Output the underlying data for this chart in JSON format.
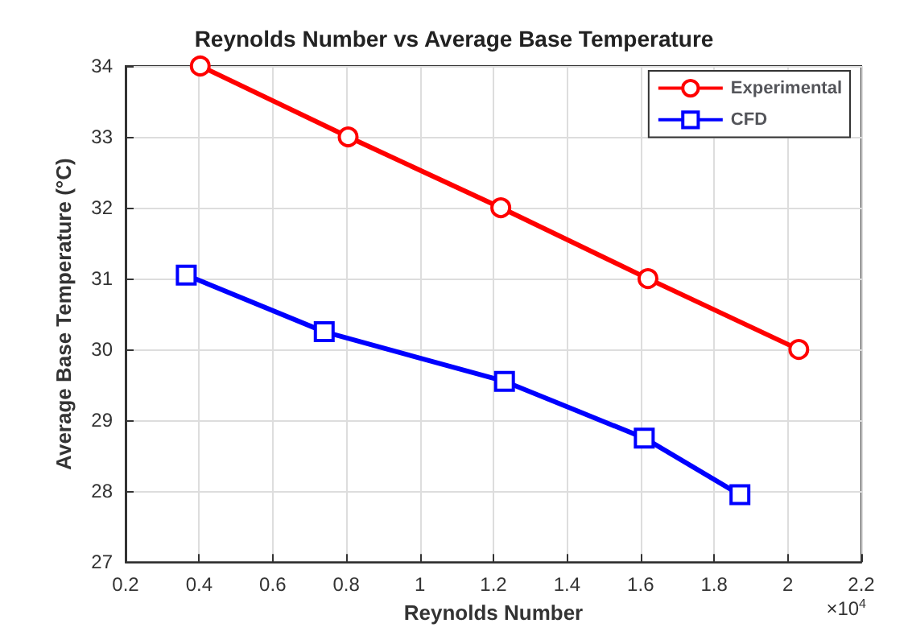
{
  "chart_data": {
    "type": "line",
    "title": "Reynolds Number vs Average Base Temperature",
    "xlabel": "Reynolds Number",
    "ylabel": "Average Base Temperature (°C)",
    "xlim": [
      0.2,
      2.2
    ],
    "xticks": [
      0.2,
      0.4,
      0.6,
      0.8,
      1,
      1.2,
      1.4,
      1.6,
      1.8,
      2,
      2.2
    ],
    "ylim": [
      27,
      34
    ],
    "yticks": [
      27,
      28,
      29,
      30,
      31,
      32,
      33,
      34
    ],
    "grid": true,
    "legend": "top right",
    "annotations": [
      "×10$^{4}$"
    ],
    "series": [
      {
        "name": "Experimental",
        "color": "#ff0000",
        "marker": "circle",
        "x": [
          0.403,
          0.805,
          1.22,
          1.62,
          2.03
        ],
        "values": [
          34,
          33,
          32,
          31,
          30
        ]
      },
      {
        "name": "CFD",
        "color": "#0000ff",
        "marker": "square",
        "x": [
          0.365,
          0.74,
          1.23,
          1.61,
          1.87
        ],
        "values": [
          31.05,
          30.25,
          29.55,
          28.75,
          27.95
        ]
      }
    ]
  }
}
